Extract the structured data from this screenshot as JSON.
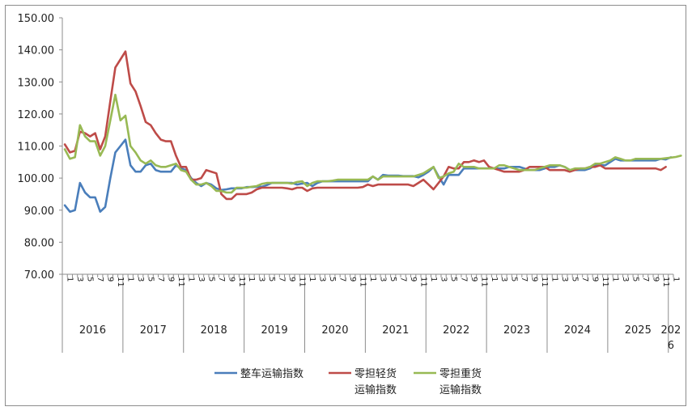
{
  "chart_data": {
    "type": "line",
    "ylim": [
      70,
      150
    ],
    "y_ticks": [
      "70.00",
      "80.00",
      "90.00",
      "100.00",
      "110.00",
      "120.00",
      "130.00",
      "140.00",
      "150.00"
    ],
    "month_labels": [
      "1",
      "3",
      "5",
      "7",
      "9",
      "11"
    ],
    "years": [
      "2016",
      "2017",
      "2018",
      "2019",
      "2020",
      "2021",
      "2022",
      "2023",
      "2024",
      "2025",
      "2026"
    ],
    "grid": false,
    "legend_position": "bottom",
    "series": [
      {
        "name": "整车运输指数",
        "color": "#4a7ebb",
        "values": [
          91.5,
          89.5,
          90,
          98.5,
          95.5,
          94,
          94,
          89.5,
          91,
          100,
          108,
          110,
          112,
          104,
          102,
          102,
          104,
          104.5,
          102.5,
          102,
          102,
          102,
          104,
          103,
          102.5,
          100,
          98.5,
          97.5,
          98.5,
          98,
          96.8,
          96.3,
          96.5,
          96.8,
          96.8,
          96.8,
          97.2,
          97.2,
          97.3,
          97.3,
          97.8,
          98.5,
          98.5,
          98.5,
          98.5,
          98.5,
          98,
          98.3,
          98.5,
          97.5,
          98.5,
          99,
          99,
          99,
          99,
          99,
          99,
          99,
          99,
          99,
          99,
          100.5,
          99.5,
          101,
          100.8,
          100.8,
          100.8,
          100.6,
          100.6,
          100.6,
          100.2,
          101,
          102,
          103.5,
          100.5,
          98,
          101,
          101,
          101,
          103,
          103,
          103,
          103,
          103,
          103,
          103,
          103,
          103,
          103.5,
          103.5,
          103.5,
          103,
          102.5,
          102.5,
          102.5,
          103,
          103.5,
          103.5,
          104,
          103.5,
          102.5,
          102.5,
          102.5,
          102.5,
          103,
          104,
          104,
          104,
          105,
          106,
          105.5,
          105.5,
          105.5,
          105.5,
          105.5,
          105.5,
          105.5,
          105.5,
          106,
          105.8,
          106.5
        ]
      },
      {
        "name": "零担轻货运输指数",
        "color": "#be4b48",
        "values": [
          110.5,
          108,
          108.5,
          114.5,
          114,
          113,
          114,
          109,
          113,
          124,
          134.5,
          137,
          139.5,
          129.5,
          127,
          122.5,
          117.5,
          116.5,
          114,
          112,
          111.5,
          111.5,
          107,
          103.5,
          103.5,
          99.5,
          99.5,
          100,
          102.5,
          102,
          101.5,
          95,
          93.5,
          93.5,
          95,
          95,
          95,
          95.5,
          96.5,
          97,
          97,
          97,
          97,
          97,
          96.8,
          96.5,
          97,
          97,
          96,
          96.8,
          97,
          97,
          97,
          97,
          97,
          97,
          97,
          97,
          97,
          97.2,
          98,
          97.5,
          98,
          98,
          98,
          98,
          98,
          98,
          98,
          97.5,
          98.5,
          99.5,
          98,
          96.5,
          98.5,
          100.5,
          103.5,
          103,
          103,
          105,
          105,
          105.5,
          105,
          105.5,
          103.5,
          103,
          102.5,
          102,
          102,
          102,
          102,
          102.5,
          103.5,
          103.5,
          103.5,
          103.5,
          102.5,
          102.5,
          102.5,
          102.5,
          102,
          102.5,
          103,
          103,
          103.5,
          103.5,
          104,
          103,
          103,
          103,
          103,
          103,
          103,
          103,
          103,
          103,
          103,
          103,
          102.5,
          103.5
        ]
      },
      {
        "name": "零担重货运输指数",
        "color": "#98b954",
        "values": [
          109,
          106,
          106.5,
          116.5,
          113,
          111.5,
          111.5,
          107,
          110,
          118,
          126,
          118,
          119.5,
          110,
          108,
          105.5,
          104.5,
          105.5,
          104,
          103.5,
          103.5,
          104,
          104.5,
          102.5,
          102,
          99.5,
          98,
          98,
          98.5,
          97.5,
          96,
          96,
          95.5,
          95.5,
          97,
          97,
          97,
          97.3,
          97.5,
          98.2,
          98.5,
          98.5,
          98.5,
          98.5,
          98.5,
          98.3,
          98.8,
          99,
          97.5,
          98.5,
          99,
          99,
          99,
          99.2,
          99.5,
          99.5,
          99.5,
          99.5,
          99.5,
          99.5,
          99.5,
          100.5,
          99.5,
          100.5,
          100.5,
          100.5,
          100.5,
          100.5,
          100.5,
          100.5,
          101,
          101.5,
          102.5,
          103.5,
          100,
          100.5,
          101.5,
          102,
          104.5,
          103.5,
          103.5,
          103.5,
          103,
          103,
          103,
          103,
          104,
          104,
          103.5,
          103,
          102.5,
          102.5,
          102.5,
          102.5,
          103,
          103.5,
          104,
          104,
          104,
          103.5,
          102.5,
          103,
          103,
          103,
          103.5,
          104.5,
          104.5,
          105,
          105.5,
          106.5,
          106,
          105.5,
          105.5,
          106,
          106,
          106,
          106,
          106,
          106,
          106.2,
          106.4,
          106.6,
          107
        ]
      }
    ]
  }
}
